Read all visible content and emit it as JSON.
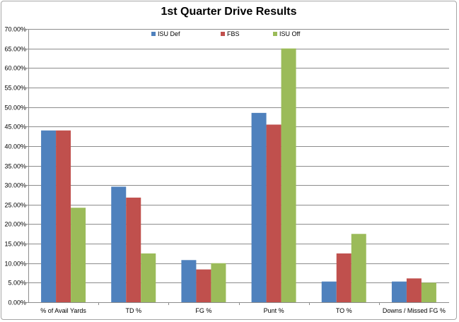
{
  "chart_data": {
    "type": "bar",
    "title": "1st Quarter Drive Results",
    "xlabel": "",
    "ylabel": "",
    "ylim": [
      0,
      70
    ],
    "y_tick_step": 5,
    "y_tick_format": "percent_2dp",
    "grid": true,
    "legend_position": "top",
    "categories": [
      "% of Avail Yards",
      "TD %",
      "FG %",
      "Punt %",
      "TO %",
      "Downs / Missed FG %"
    ],
    "series": [
      {
        "name": "ISU Def",
        "color": "#4f81bd",
        "values": [
          44.0,
          29.6,
          10.8,
          48.5,
          5.3,
          5.3
        ]
      },
      {
        "name": "FBS",
        "color": "#c0504d",
        "values": [
          44.0,
          26.8,
          8.4,
          45.5,
          12.5,
          6.1
        ]
      },
      {
        "name": "ISU Off",
        "color": "#9bbb59",
        "values": [
          24.2,
          12.5,
          10.0,
          65.0,
          17.5,
          5.0
        ]
      }
    ]
  }
}
